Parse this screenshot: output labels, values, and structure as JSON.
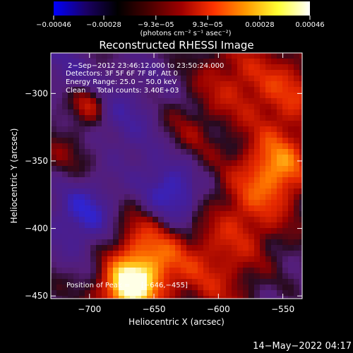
{
  "chart_data": {
    "type": "heatmap",
    "title": "Reconstructed RHESSI Image",
    "xlabel": "Heliocentric X (arcsec)",
    "ylabel": "Heliocentric Y (arcsec)",
    "xlim": [
      -730,
      -535
    ],
    "ylim": [
      -452,
      -270
    ],
    "x_ticks": [
      -700,
      -650,
      -600,
      -550
    ],
    "y_ticks": [
      -300,
      -350,
      -400,
      -450
    ],
    "x_tick_labels": [
      "−700",
      "−650",
      "−600",
      "−550"
    ],
    "y_tick_labels": [
      "−300",
      "−350",
      "−400",
      "−450"
    ],
    "colorbar": {
      "ticks": [
        -0.00046,
        -0.00028,
        -9.3e-05,
        9.3e-05,
        0.00028,
        0.00046
      ],
      "tick_labels": [
        "−0.00046",
        "−0.00028",
        "−9.3e−05",
        "9.3e−05",
        "0.00028",
        "0.00046"
      ],
      "units": "(photons cm⁻² s⁻¹ asec⁻²)",
      "range": [
        -0.00046,
        0.00046
      ],
      "colors": [
        "#0000ff",
        "#1a0066",
        "#000000",
        "#4a0000",
        "#a00000",
        "#ff3300",
        "#ff9900",
        "#ffff33",
        "#ffffff"
      ]
    },
    "annotations": [
      "2−Sep−2012 23:46:12.000 to 23:50:24.000",
      "Detectors: 3F 5F 6F 7F 8F, Att 0",
      "Energy Range: 25.0 − 50.0 keV",
      "Clean     Total counts: 3.40E+03"
    ],
    "peak": {
      "label": "Position of Peak = ",
      "value": "[−646,−455]",
      "x": -646,
      "y": -455
    }
  },
  "footer": {
    "timestamp": "14−May−2022 04:17"
  }
}
